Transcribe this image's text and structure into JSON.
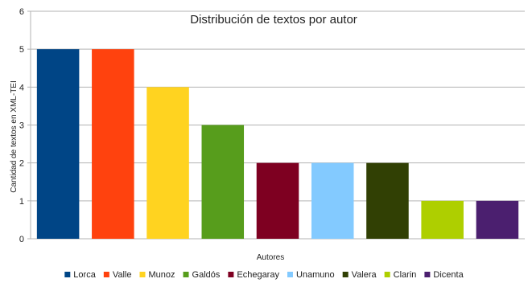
{
  "chart_data": {
    "type": "bar",
    "title": "Distribución de textos por autor",
    "xlabel": "Autores",
    "ylabel": "Cantidad de textos en XML-TEI",
    "ylim": [
      0,
      6
    ],
    "yticks": [
      0,
      1,
      2,
      3,
      4,
      5,
      6
    ],
    "grid": true,
    "legend_position": "bottom",
    "categories": [
      "Lorca",
      "Valle",
      "Munoz",
      "Galdós",
      "Echegaray",
      "Unamuno",
      "Valera",
      "Clarin",
      "Dicenta"
    ],
    "values": [
      5,
      5,
      4,
      3,
      2,
      2,
      2,
      1,
      1
    ],
    "colors": [
      "#004586",
      "#ff420e",
      "#ffd320",
      "#579d1c",
      "#7e0021",
      "#83caff",
      "#314004",
      "#aecf00",
      "#4b1f6f"
    ],
    "legend": [
      "Lorca",
      "Valle",
      "Munoz",
      "Galdós",
      "Echegaray",
      "Unamuno",
      "Valera",
      "Clarin",
      "Dicenta"
    ]
  }
}
